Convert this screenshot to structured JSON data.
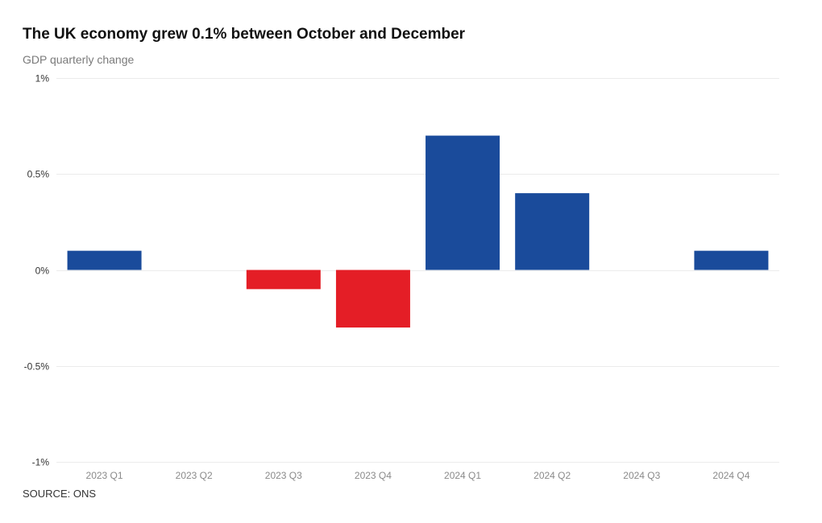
{
  "title": "The UK economy grew 0.1% between October and December",
  "subtitle": "GDP quarterly change",
  "source": "SOURCE: ONS",
  "colors": {
    "positive": "#1a4b9b",
    "negative": "#e41e26",
    "grid": "#ebebeb",
    "tick_text": "#8a8a8a",
    "axis_text": "#333333"
  },
  "chart_data": {
    "type": "bar",
    "categories": [
      "2023 Q1",
      "2023 Q2",
      "2023 Q3",
      "2023 Q4",
      "2024 Q1",
      "2024 Q2",
      "2024 Q3",
      "2024 Q4"
    ],
    "values": [
      0.1,
      0.0,
      -0.1,
      -0.3,
      0.7,
      0.4,
      0.0,
      0.1
    ],
    "ylim": [
      -1,
      1
    ],
    "yticks": [
      1,
      0.5,
      0,
      -0.5,
      -1
    ],
    "ytick_labels": [
      "1%",
      "0.5%",
      "0%",
      "-0.5%",
      "-1%"
    ],
    "xlabel": "",
    "ylabel": "",
    "grid": true
  }
}
